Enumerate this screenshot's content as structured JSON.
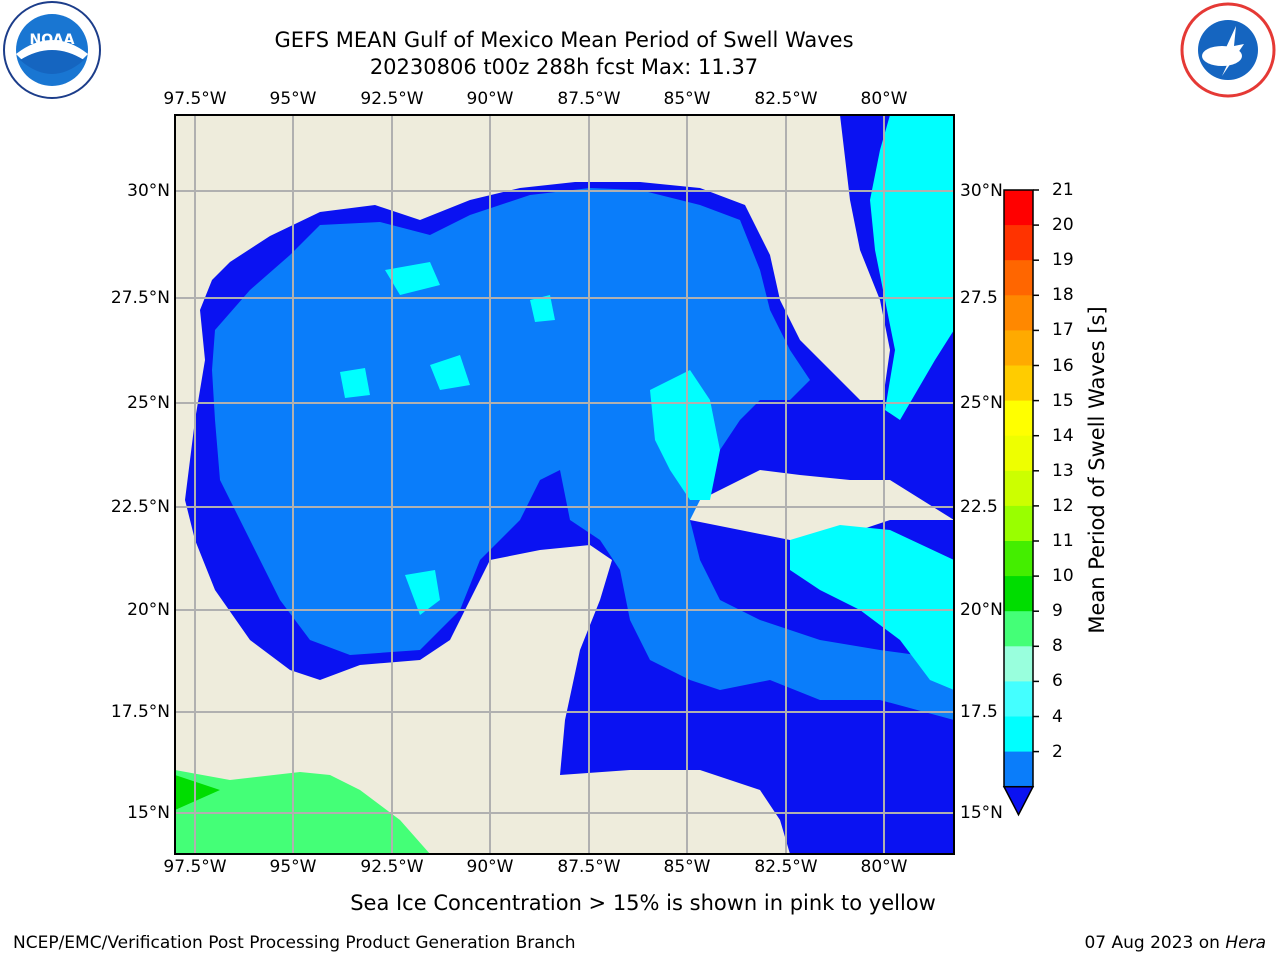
{
  "title": {
    "line1": "GEFS MEAN Gulf of Mexico Mean Period of Swell Waves",
    "line2": "20230806 t00z 288h fcst   Max: 11.37"
  },
  "map": {
    "lon_labels": [
      "97.5°W",
      "95°W",
      "92.5°W",
      "90°W",
      "87.5°W",
      "85°W",
      "82.5°W",
      "80°W"
    ],
    "lat_labels": [
      "30°N",
      "27.5°N",
      "25°N",
      "22.5°N",
      "20°N",
      "17.5°N",
      "15°N"
    ],
    "lat_labels_right": [
      "30°N",
      "27.5",
      "25°N",
      "22.5",
      "20°N",
      "17.5",
      "15°N"
    ],
    "colors": {
      "land": "#eeecdc",
      "ocean_dark": "#0a12f2",
      "ocean_mid": "#0a7dfa",
      "ocean_light": "#00ffff",
      "grid": "#b0b0b0"
    }
  },
  "colorbar": {
    "label": "Mean Period of Swell Waves [s]",
    "ticks": [
      "21",
      "20",
      "19",
      "18",
      "17",
      "16",
      "15",
      "14",
      "13",
      "12",
      "11",
      "10",
      "9",
      "8",
      "6",
      "4",
      "2"
    ],
    "colors": [
      "#ff0000",
      "#ff3300",
      "#ff6600",
      "#ff8800",
      "#ffaa00",
      "#ffcc00",
      "#ffff00",
      "#eeff00",
      "#ccff00",
      "#99ff00",
      "#44ee00",
      "#00dd00",
      "#44ff77",
      "#99ffdd",
      "#44ffff",
      "#00ffff",
      "#0a7dfa"
    ]
  },
  "logos": {
    "left": "noaa-logo",
    "right": "nws-logo"
  },
  "note": "Sea Ice Concentration > 15% is shown in pink to yellow",
  "footer": {
    "left": "NCEP/EMC/Verification Post Processing Product Generation Branch",
    "right_prefix": "07 Aug 2023 on ",
    "right_host": "Hera"
  }
}
